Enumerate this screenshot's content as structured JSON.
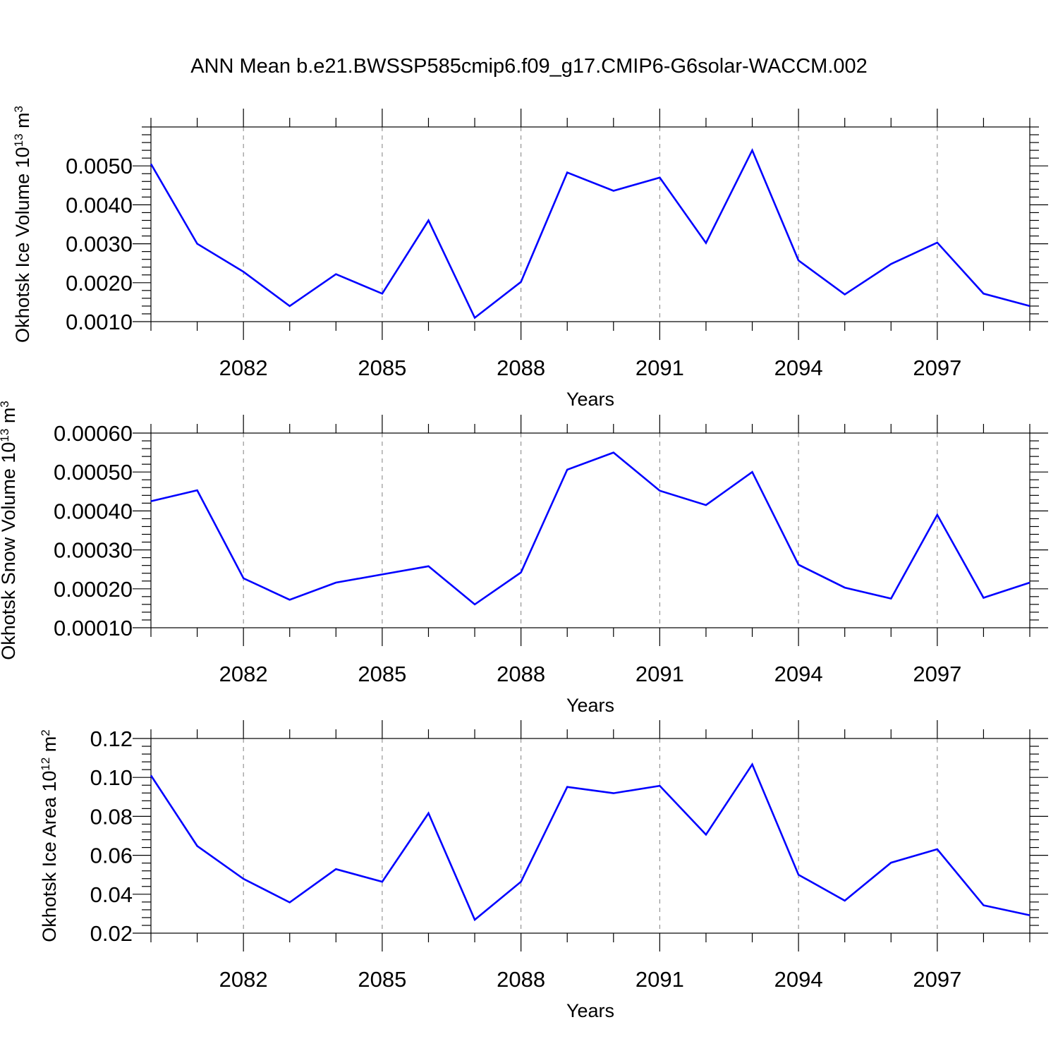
{
  "title": "ANN Mean b.e21.BWSSP585cmip6.f09_g17.CMIP6-G6solar-WACCM.002",
  "colors": {
    "line": "#0000ff",
    "frame": "#000000",
    "grid": "#808080"
  },
  "chart_data": [
    {
      "type": "line",
      "xlabel": "Years",
      "ylabel": {
        "text": "Okhotsk Ice Volume 10",
        "exp": "13",
        "unit": " m",
        "unit_exp": "3"
      },
      "x": [
        2080,
        2081,
        2082,
        2083,
        2084,
        2085,
        2086,
        2087,
        2088,
        2089,
        2090,
        2091,
        2092,
        2093,
        2094,
        2095,
        2096,
        2097,
        2098,
        2099
      ],
      "series": [
        {
          "values": [
            0.00505,
            0.003,
            0.00228,
            0.0014,
            0.00222,
            0.00172,
            0.0036,
            0.0011,
            0.00202,
            0.00483,
            0.00436,
            0.0047,
            0.00302,
            0.0054,
            0.00257,
            0.0017,
            0.00248,
            0.00303,
            0.00172,
            0.0014
          ]
        }
      ],
      "xlim": [
        2080,
        2099
      ],
      "ylim": [
        0.001,
        0.006
      ],
      "xticks": [
        "2082",
        "2085",
        "2088",
        "2091",
        "2094",
        "2097"
      ],
      "yticks": [
        "0.0010",
        "0.0020",
        "0.0030",
        "0.0040",
        "0.0050"
      ],
      "grid": "vertical dashed at major x ticks"
    },
    {
      "type": "line",
      "xlabel": "Years",
      "ylabel": {
        "text": "Okhotsk Snow Volume 10",
        "exp": "13",
        "unit": " m",
        "unit_exp": "3"
      },
      "x": [
        2080,
        2081,
        2082,
        2083,
        2084,
        2085,
        2086,
        2087,
        2088,
        2089,
        2090,
        2091,
        2092,
        2093,
        2094,
        2095,
        2096,
        2097,
        2098,
        2099
      ],
      "series": [
        {
          "values": [
            0.000425,
            0.000453,
            0.000227,
            0.000172,
            0.000216,
            0.000237,
            0.000258,
            0.00016,
            0.000242,
            0.000506,
            0.00055,
            0.000452,
            0.000415,
            0.0005,
            0.000262,
            0.000203,
            0.000175,
            0.00039,
            0.000177,
            0.000216
          ]
        }
      ],
      "xlim": [
        2080,
        2099
      ],
      "ylim": [
        0.0001,
        0.0006
      ],
      "xticks": [
        "2082",
        "2085",
        "2088",
        "2091",
        "2094",
        "2097"
      ],
      "yticks": [
        "0.00010",
        "0.00020",
        "0.00030",
        "0.00040",
        "0.00050",
        "0.00060"
      ],
      "grid": "vertical dashed at major x ticks"
    },
    {
      "type": "line",
      "xlabel": "Years",
      "ylabel": {
        "text": "Okhotsk Ice Area 10",
        "exp": "12",
        "unit": " m",
        "unit_exp": "2"
      },
      "x": [
        2080,
        2081,
        2082,
        2083,
        2084,
        2085,
        2086,
        2087,
        2088,
        2089,
        2090,
        2091,
        2092,
        2093,
        2094,
        2095,
        2096,
        2097,
        2098,
        2099
      ],
      "series": [
        {
          "values": [
            0.101,
            0.0648,
            0.0479,
            0.0358,
            0.0529,
            0.0464,
            0.0816,
            0.0269,
            0.0464,
            0.0951,
            0.0919,
            0.0957,
            0.0706,
            0.1067,
            0.05,
            0.0367,
            0.0562,
            0.0631,
            0.0343,
            0.0292
          ]
        }
      ],
      "xlim": [
        2080,
        2099
      ],
      "ylim": [
        0.02,
        0.12
      ],
      "xticks": [
        "2082",
        "2085",
        "2088",
        "2091",
        "2094",
        "2097"
      ],
      "yticks": [
        "0.02",
        "0.04",
        "0.06",
        "0.08",
        "0.10",
        "0.12"
      ],
      "grid": "vertical dashed at major x ticks"
    }
  ]
}
